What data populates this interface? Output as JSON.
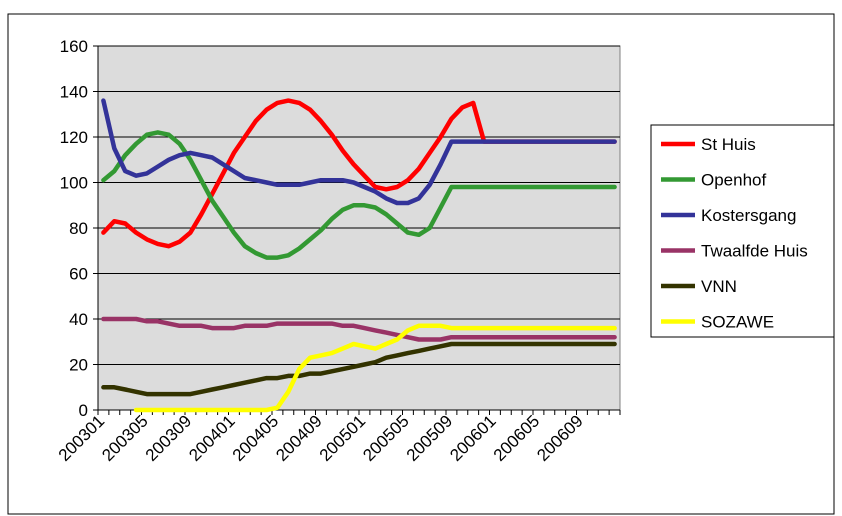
{
  "header_text": "",
  "chart_data": {
    "type": "line",
    "title": "",
    "xlabel": "",
    "ylabel": "",
    "ylim": [
      0,
      160
    ],
    "yticks": [
      0,
      20,
      40,
      60,
      80,
      100,
      120,
      140,
      160
    ],
    "grid": true,
    "legend_position": "right",
    "x_tick_labels": [
      "200301",
      "200305",
      "200309",
      "200401",
      "200405",
      "200409",
      "200501",
      "200505",
      "200509",
      "200601",
      "200605",
      "200609"
    ],
    "x": [
      "200301",
      "200302",
      "200303",
      "200304",
      "200305",
      "200306",
      "200307",
      "200308",
      "200309",
      "200310",
      "200311",
      "200312",
      "200401",
      "200402",
      "200403",
      "200404",
      "200405",
      "200406",
      "200407",
      "200408",
      "200409",
      "200410",
      "200411",
      "200412",
      "200501",
      "200502",
      "200503",
      "200504",
      "200505",
      "200506",
      "200507",
      "200508",
      "200509",
      "200510",
      "200511",
      "200512",
      "200601",
      "200602",
      "200603",
      "200604",
      "200605",
      "200606",
      "200607",
      "200608",
      "200609",
      "200610",
      "200611",
      "200612"
    ],
    "series": [
      {
        "name": "St Huis",
        "color": "#ff0000",
        "values": [
          78,
          83,
          82,
          78,
          75,
          73,
          72,
          74,
          78,
          86,
          95,
          104,
          113,
          120,
          127,
          132,
          135,
          136,
          135,
          132,
          127,
          121,
          114,
          108,
          103,
          98,
          97,
          98,
          101,
          106,
          113,
          120,
          128,
          133,
          135,
          118,
          118,
          118,
          118,
          118,
          118,
          118,
          118,
          118,
          118,
          118,
          118,
          118
        ]
      },
      {
        "name": "Openhof",
        "color": "#339933",
        "values": [
          101,
          105,
          112,
          117,
          121,
          122,
          121,
          117,
          110,
          101,
          92,
          85,
          78,
          72,
          69,
          67,
          67,
          68,
          71,
          75,
          79,
          84,
          88,
          90,
          90,
          89,
          86,
          82,
          78,
          77,
          80,
          89,
          98,
          98,
          98,
          98,
          98,
          98,
          98,
          98,
          98,
          98,
          98,
          98,
          98,
          98,
          98,
          98
        ]
      },
      {
        "name": "Kostersgang",
        "color": "#333399",
        "values": [
          136,
          115,
          105,
          103,
          104,
          107,
          110,
          112,
          113,
          112,
          111,
          108,
          105,
          102,
          101,
          100,
          99,
          99,
          99,
          100,
          101,
          101,
          101,
          100,
          98,
          96,
          93,
          91,
          91,
          93,
          99,
          108,
          118,
          118,
          118,
          118,
          118,
          118,
          118,
          118,
          118,
          118,
          118,
          118,
          118,
          118,
          118,
          118
        ]
      },
      {
        "name": "Twaalfde Huis",
        "color": "#993366",
        "values": [
          40,
          40,
          40,
          40,
          39,
          39,
          38,
          37,
          37,
          37,
          36,
          36,
          36,
          37,
          37,
          37,
          38,
          38,
          38,
          38,
          38,
          38,
          37,
          37,
          36,
          35,
          34,
          33,
          32,
          31,
          31,
          31,
          32,
          32,
          32,
          32,
          32,
          32,
          32,
          32,
          32,
          32,
          32,
          32,
          32,
          32,
          32,
          32
        ]
      },
      {
        "name": "VNN",
        "color": "#333300",
        "values": [
          10,
          10,
          9,
          8,
          7,
          7,
          7,
          7,
          7,
          8,
          9,
          10,
          11,
          12,
          13,
          14,
          14,
          15,
          15,
          16,
          16,
          17,
          18,
          19,
          20,
          21,
          23,
          24,
          25,
          26,
          27,
          28,
          29,
          29,
          29,
          29,
          29,
          29,
          29,
          29,
          29,
          29,
          29,
          29,
          29,
          29,
          29,
          29
        ]
      },
      {
        "name": "SOZAWE",
        "color": "#ffff00",
        "values": [
          null,
          null,
          null,
          0,
          0,
          0,
          0,
          0,
          0,
          0,
          0,
          0,
          0,
          0,
          0,
          0,
          1,
          8,
          18,
          23,
          24,
          25,
          27,
          29,
          28,
          27,
          29,
          31,
          35,
          37,
          37,
          37,
          36,
          36,
          36,
          36,
          36,
          36,
          36,
          36,
          36,
          36,
          36,
          36,
          36,
          36,
          36,
          36
        ]
      }
    ]
  }
}
